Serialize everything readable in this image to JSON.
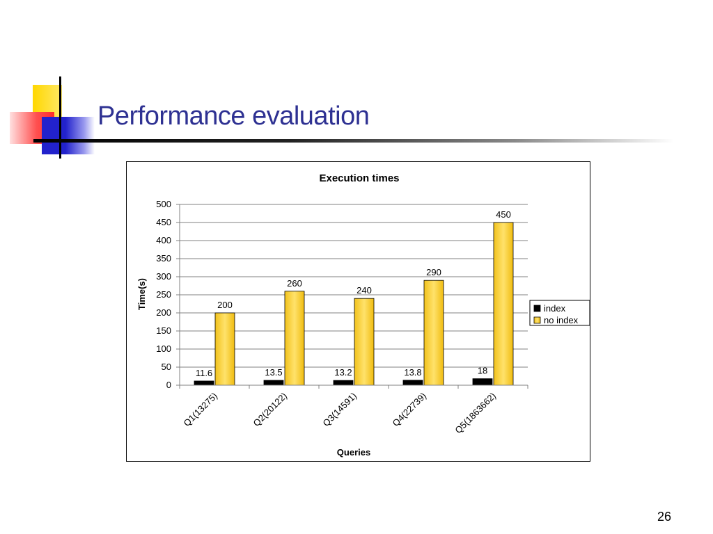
{
  "slide": {
    "title": "Performance evaluation",
    "page_number": "26"
  },
  "colors": {
    "title": "#2E3192",
    "deco_yellow": "#FFD700",
    "deco_red": "#FF3B3B",
    "deco_blue": "#2222CC",
    "series_index": "#000000",
    "series_no_index": "#FFD84A"
  },
  "chart_data": {
    "type": "bar",
    "title": "Execution times",
    "xlabel": "Queries",
    "ylabel": "Time(s)",
    "ylim": [
      0,
      500
    ],
    "yticks": [
      "0",
      "50",
      "100",
      "150",
      "200",
      "250",
      "300",
      "350",
      "400",
      "450",
      "500"
    ],
    "grid": true,
    "legend_position": "right",
    "categories": [
      "Q1(13275)",
      "Q2(20122)",
      "Q3(14591)",
      "Q4(22739)",
      "Q5(1863662)"
    ],
    "series": [
      {
        "name": "index",
        "values": [
          11.6,
          13.5,
          13.2,
          13.8,
          18
        ],
        "labels": [
          "11.6",
          "13.5",
          "13.2",
          "13.8",
          "18"
        ]
      },
      {
        "name": "no index",
        "values": [
          200,
          260,
          240,
          290,
          450
        ],
        "labels": [
          "200",
          "260",
          "240",
          "290",
          "450"
        ]
      }
    ]
  }
}
